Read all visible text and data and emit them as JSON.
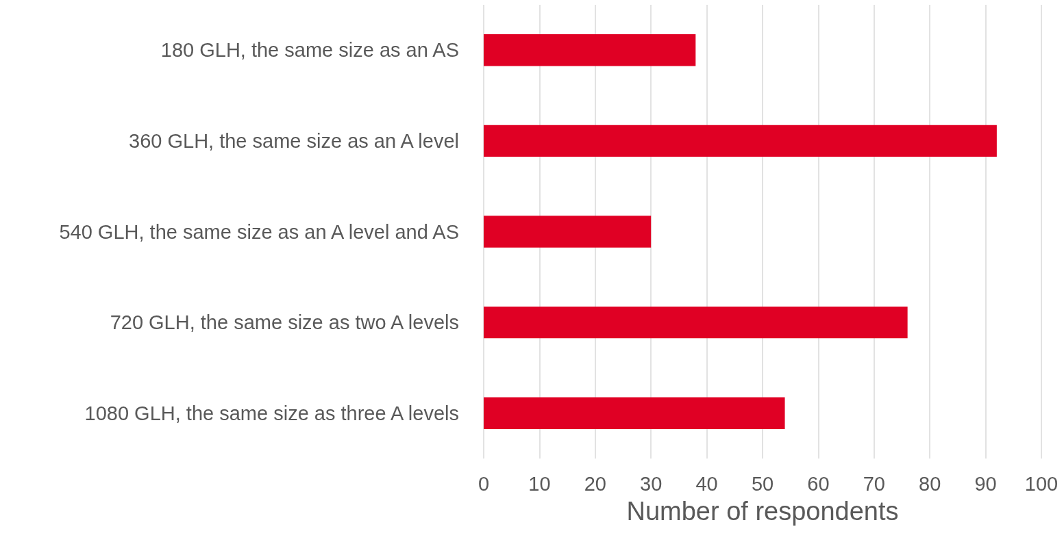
{
  "chart_data": {
    "type": "bar",
    "orientation": "horizontal",
    "xlabel": "Number of respondents",
    "categories": [
      "180 GLH, the same size as an AS",
      "360 GLH, the same size as an A level",
      "540 GLH, the same size as an A level and AS",
      "720 GLH, the same size as two A levels",
      "1080 GLH, the same size as three A levels"
    ],
    "values": [
      38,
      92,
      30,
      76,
      54
    ],
    "color": "#e00024",
    "xlim": [
      0,
      100
    ],
    "xticks": [
      0,
      10,
      20,
      30,
      40,
      50,
      60,
      70,
      80,
      90,
      100
    ],
    "grid": "x"
  }
}
